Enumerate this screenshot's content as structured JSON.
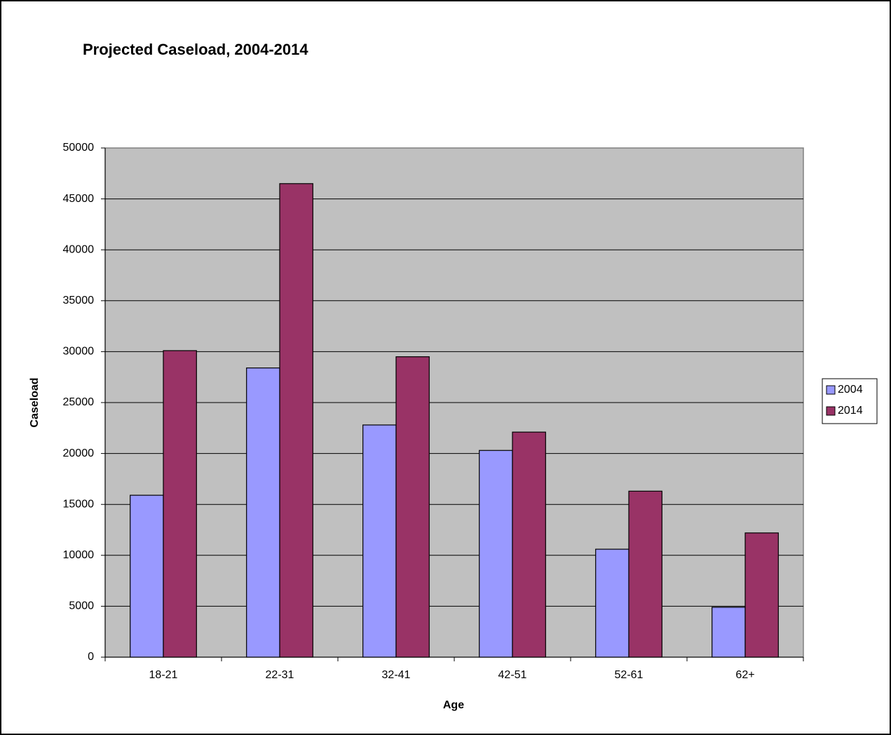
{
  "chart_data": {
    "type": "bar",
    "title": "Projected Caseload, 2004-2014",
    "x_label": "Age",
    "y_label": "Caseload",
    "categories": [
      "18-21",
      "22-31",
      "32-41",
      "42-51",
      "52-61",
      "62+"
    ],
    "series": [
      {
        "name": "2004",
        "color": "#9999ff",
        "values": [
          15900,
          28400,
          22800,
          20300,
          10600,
          4900
        ]
      },
      {
        "name": "2014",
        "color": "#993366",
        "values": [
          30100,
          46500,
          29500,
          22100,
          16300,
          12200
        ]
      }
    ],
    "ylim": [
      0,
      50000
    ],
    "yticks": [
      0,
      5000,
      10000,
      15000,
      20000,
      25000,
      30000,
      35000,
      40000,
      45000,
      50000
    ],
    "grid": true,
    "legend": "right"
  }
}
